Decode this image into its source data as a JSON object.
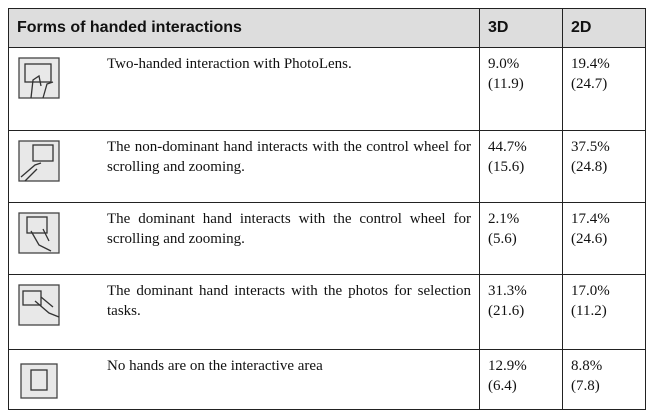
{
  "header": {
    "title": "Forms of handed interactions",
    "col_3d": "3D",
    "col_2d": "2D"
  },
  "rows": [
    {
      "description": "Two-handed interaction with PhotoLens.",
      "d3": {
        "mean": "9.0%",
        "sd": "(11.9)"
      },
      "d2": {
        "mean": "19.4%",
        "sd": "(24.7)"
      }
    },
    {
      "description": "The non-dominant hand interacts with the control wheel for scrolling and zooming.",
      "d3": {
        "mean": "44.7%",
        "sd": "(15.6)"
      },
      "d2": {
        "mean": "37.5%",
        "sd": "(24.8)"
      }
    },
    {
      "description": "The dominant hand interacts with the control wheel for scrolling and zooming.",
      "d3": {
        "mean": "2.1%",
        "sd": "(5.6)"
      },
      "d2": {
        "mean": "17.4%",
        "sd": "(24.6)"
      }
    },
    {
      "description": "The dominant hand interacts with the photos for selection tasks.",
      "d3": {
        "mean": "31.3%",
        "sd": "(21.6)"
      },
      "d2": {
        "mean": "17.0%",
        "sd": "(11.2)"
      }
    },
    {
      "description": "No hands are on the interactive area",
      "d3": {
        "mean": "12.9%",
        "sd": "(6.4)"
      },
      "d2": {
        "mean": "8.8%",
        "sd": "(7.8)"
      }
    }
  ]
}
